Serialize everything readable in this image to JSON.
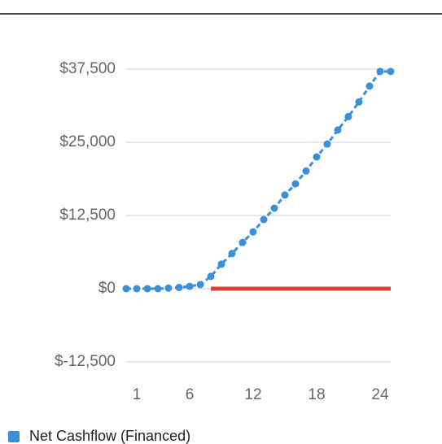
{
  "chart_data": {
    "type": "line",
    "x": [
      0,
      1,
      2,
      3,
      4,
      5,
      6,
      7,
      8,
      9,
      10,
      11,
      12,
      13,
      14,
      15,
      16,
      17,
      18,
      19,
      20,
      21,
      22,
      23,
      24,
      25
    ],
    "xlim": [
      0,
      25
    ],
    "xticks": [
      1,
      6,
      12,
      18,
      24
    ],
    "ylim": [
      -12500,
      37500
    ],
    "yticks": [
      {
        "value": -12500,
        "label": "$-12,500"
      },
      {
        "value": 0,
        "label": "$0"
      },
      {
        "value": 12500,
        "label": "$12,500"
      },
      {
        "value": 25000,
        "label": "$25,000"
      },
      {
        "value": 37500,
        "label": "$37,500"
      }
    ],
    "grid": true,
    "series": [
      {
        "name": "Net Cashflow (Financed)",
        "color": "#3a8fd9",
        "markers": true,
        "dashed": true,
        "values": [
          0,
          0,
          0,
          0,
          100,
          200,
          400,
          700,
          2100,
          4200,
          6000,
          7900,
          9700,
          11800,
          13750,
          16000,
          17900,
          20100,
          22500,
          24700,
          27100,
          29400,
          31900,
          34600,
          37100,
          37100
        ]
      },
      {
        "color": "#d9403a",
        "values": [
          null,
          null,
          null,
          null,
          null,
          null,
          null,
          null,
          0,
          0,
          0,
          0,
          0,
          0,
          0,
          0,
          0,
          0,
          0,
          0,
          0,
          0,
          0,
          0,
          0,
          0
        ]
      }
    ]
  }
}
